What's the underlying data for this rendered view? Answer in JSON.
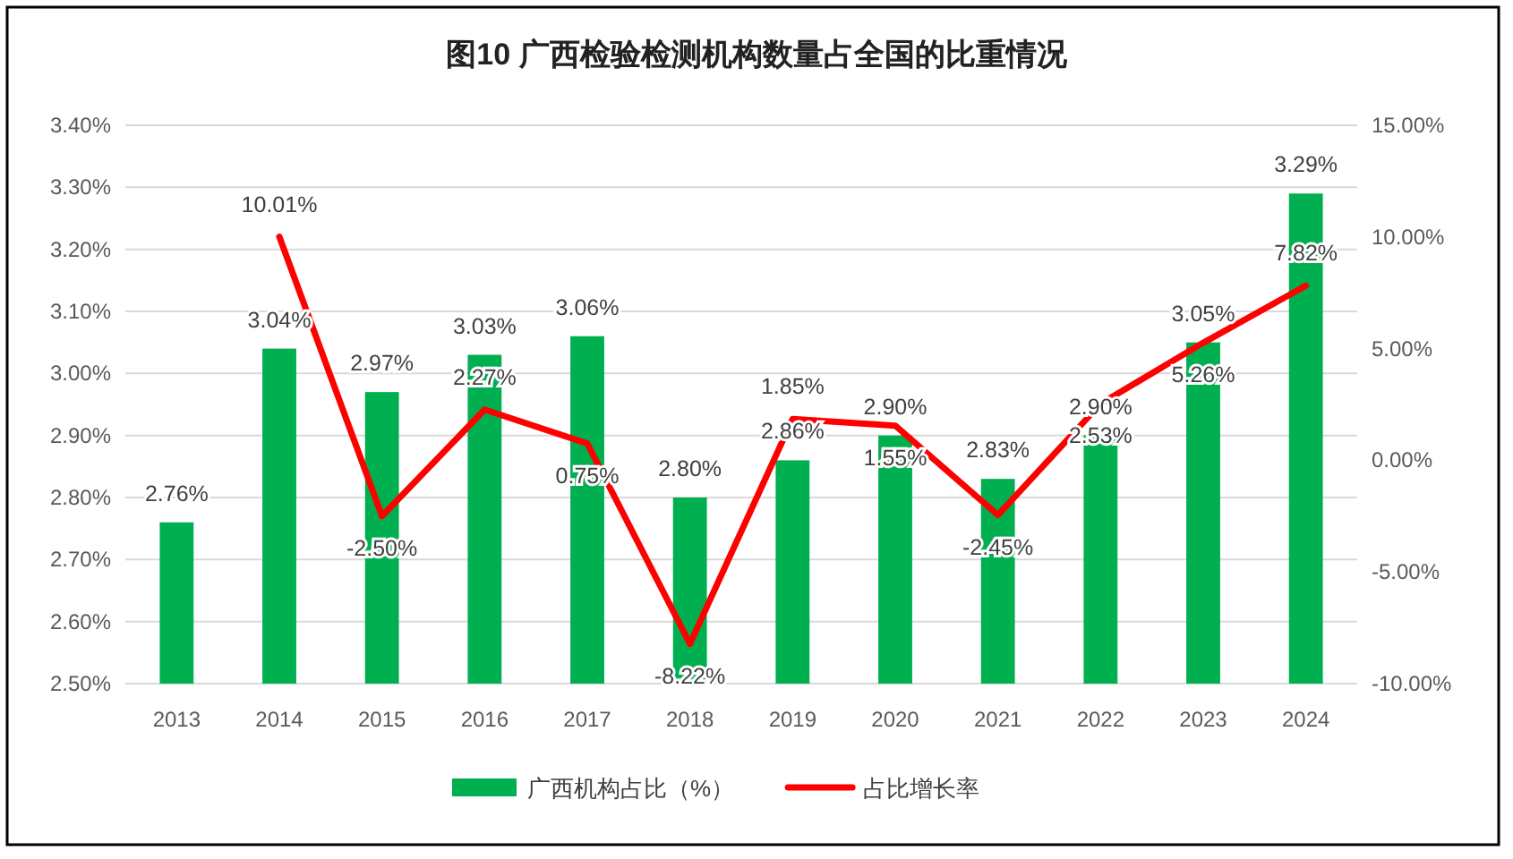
{
  "chart_data": {
    "type": "bar",
    "title": "图10 广西检验检测机构数量占全国的比重情况",
    "categories": [
      "2013",
      "2014",
      "2015",
      "2016",
      "2017",
      "2018",
      "2019",
      "2020",
      "2021",
      "2022",
      "2023",
      "2024"
    ],
    "series": [
      {
        "name": "广西机构占比（%）",
        "color": "#00b050",
        "values": [
          2.76,
          3.04,
          2.97,
          3.03,
          3.06,
          2.8,
          2.86,
          2.9,
          2.83,
          2.9,
          3.05,
          3.29
        ],
        "value_labels": [
          "2.76%",
          "3.04%",
          "2.97%",
          "3.03%",
          "3.06%",
          "2.80%",
          "2.86%",
          "2.90%",
          "2.83%",
          "2.90%",
          "3.05%",
          "3.29%"
        ]
      },
      {
        "name": "占比增长率",
        "type": "line",
        "axis": "y2",
        "color": "#ff0000",
        "values": [
          null,
          10.01,
          -2.5,
          2.27,
          0.75,
          -8.22,
          1.85,
          1.55,
          -2.45,
          2.53,
          5.26,
          7.82
        ],
        "value_labels": [
          null,
          "10.01%",
          "-2.50%",
          "2.27%",
          "0.75%",
          "-8.22%",
          "1.85%",
          "1.55%",
          "-2.45%",
          "2.53%",
          "5.26%",
          "7.82%"
        ]
      }
    ],
    "ylim": [
      2.5,
      3.4
    ],
    "yticks": [
      {
        "value": 2.5,
        "label": "2.50%"
      },
      {
        "value": 2.6,
        "label": "2.60%"
      },
      {
        "value": 2.7,
        "label": "2.70%"
      },
      {
        "value": 2.8,
        "label": "2.80%"
      },
      {
        "value": 2.9,
        "label": "2.90%"
      },
      {
        "value": 3.0,
        "label": "3.00%"
      },
      {
        "value": 3.1,
        "label": "3.10%"
      },
      {
        "value": 3.2,
        "label": "3.20%"
      },
      {
        "value": 3.3,
        "label": "3.30%"
      },
      {
        "value": 3.4,
        "label": "3.40%"
      }
    ],
    "y2lim": [
      -10,
      15
    ],
    "y2ticks": [
      {
        "value": -10,
        "label": "-10.00%"
      },
      {
        "value": -5,
        "label": "-5.00%"
      },
      {
        "value": 0,
        "label": "0.00%"
      },
      {
        "value": 5,
        "label": "5.00%"
      },
      {
        "value": 10,
        "label": "10.00%"
      },
      {
        "value": 15,
        "label": "15.00%"
      }
    ],
    "grid": "y",
    "legend": "bottom"
  }
}
